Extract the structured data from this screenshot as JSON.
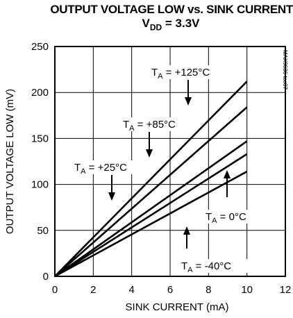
{
  "title_line1": "OUTPUT VOLTAGE LOW vs. SINK CURRENT",
  "title_line2_main": "V",
  "title_line2_sub": "DD",
  "title_line2_rest": " = 3.3V",
  "watermark": "MAX9636 toc07",
  "chart_data": {
    "type": "line",
    "xlabel": "SINK CURRENT (mA)",
    "ylabel": "OUTPUT VOLTAGE LOW (mV)",
    "xlim": [
      0,
      12
    ],
    "ylim": [
      0,
      250
    ],
    "xticks": [
      "0",
      "2",
      "4",
      "6",
      "8",
      "10",
      "12"
    ],
    "yticks": [
      "0",
      "50",
      "100",
      "150",
      "200",
      "250"
    ],
    "grid": true,
    "series": [
      {
        "name": "T_A = +125°C",
        "label_main": "T",
        "label_sub": "A",
        "label_rest": " = +125°C",
        "x": [
          0,
          10
        ],
        "y": [
          0,
          212
        ]
      },
      {
        "name": "T_A = +85°C",
        "label_main": "T",
        "label_sub": "A",
        "label_rest": " = +85°C",
        "x": [
          0,
          10
        ],
        "y": [
          0,
          184
        ]
      },
      {
        "name": "T_A = +25°C",
        "label_main": "T",
        "label_sub": "A",
        "label_rest": " = +25°C",
        "x": [
          0,
          10
        ],
        "y": [
          0,
          147
        ]
      },
      {
        "name": "T_A = 0°C",
        "label_main": "T",
        "label_sub": "A",
        "label_rest": " = 0°C",
        "x": [
          0,
          10
        ],
        "y": [
          0,
          133
        ]
      },
      {
        "name": "T_A = -40°C",
        "label_main": "T",
        "label_sub": "A",
        "label_rest": " = -40°C",
        "x": [
          0,
          10
        ],
        "y": [
          0,
          114
        ]
      }
    ]
  }
}
